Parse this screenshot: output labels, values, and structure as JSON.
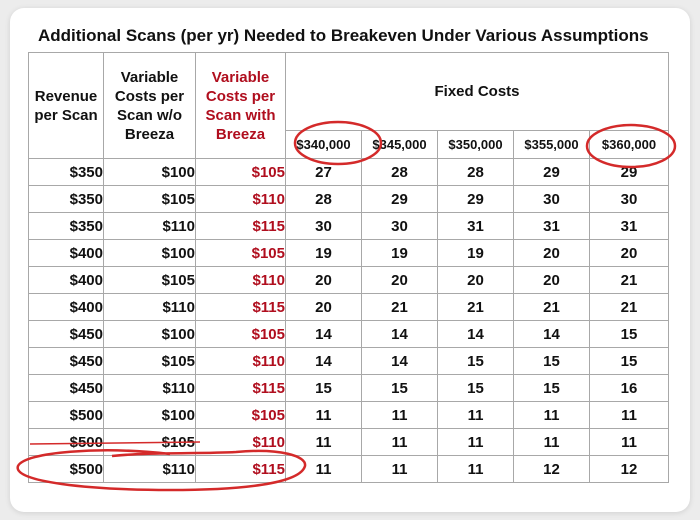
{
  "title": "Additional Scans (per yr) Needed to Breakeven Under Various Assumptions",
  "headers": {
    "revenue": [
      "Revenue",
      "per Scan"
    ],
    "variable_without": [
      "Variable",
      "Costs per",
      "Scan w/o",
      "Breeza"
    ],
    "variable_with": [
      "Variable",
      "Costs per",
      "Scan with",
      "Breeza"
    ],
    "fixed_costs": "Fixed Costs",
    "fixed_cost_columns": [
      "$340,000",
      "$345,000",
      "$350,000",
      "$355,000",
      "$360,000"
    ]
  },
  "rows": [
    {
      "revenue": "$350",
      "var_without": "$100",
      "var_with": "$105",
      "values": [
        "27",
        "28",
        "28",
        "29",
        "29"
      ]
    },
    {
      "revenue": "$350",
      "var_without": "$105",
      "var_with": "$110",
      "values": [
        "28",
        "29",
        "29",
        "30",
        "30"
      ]
    },
    {
      "revenue": "$350",
      "var_without": "$110",
      "var_with": "$115",
      "values": [
        "30",
        "30",
        "31",
        "31",
        "31"
      ]
    },
    {
      "revenue": "$400",
      "var_without": "$100",
      "var_with": "$105",
      "values": [
        "19",
        "19",
        "19",
        "20",
        "20"
      ]
    },
    {
      "revenue": "$400",
      "var_without": "$105",
      "var_with": "$110",
      "values": [
        "20",
        "20",
        "20",
        "20",
        "21"
      ]
    },
    {
      "revenue": "$400",
      "var_without": "$110",
      "var_with": "$115",
      "values": [
        "20",
        "21",
        "21",
        "21",
        "21"
      ]
    },
    {
      "revenue": "$450",
      "var_without": "$100",
      "var_with": "$105",
      "values": [
        "14",
        "14",
        "14",
        "14",
        "15"
      ]
    },
    {
      "revenue": "$450",
      "var_without": "$105",
      "var_with": "$110",
      "values": [
        "14",
        "14",
        "15",
        "15",
        "15"
      ]
    },
    {
      "revenue": "$450",
      "var_without": "$110",
      "var_with": "$115",
      "values": [
        "15",
        "15",
        "15",
        "15",
        "16"
      ]
    },
    {
      "revenue": "$500",
      "var_without": "$100",
      "var_with": "$105",
      "values": [
        "11",
        "11",
        "11",
        "11",
        "11"
      ]
    },
    {
      "revenue": "$500",
      "var_without": "$105",
      "var_with": "$110",
      "values": [
        "11",
        "11",
        "11",
        "11",
        "11"
      ]
    },
    {
      "revenue": "$500",
      "var_without": "$110",
      "var_with": "$115",
      "values": [
        "11",
        "11",
        "11",
        "12",
        "12"
      ]
    }
  ],
  "colors": {
    "text": "#111111",
    "accent_red": "#b00e1e",
    "annotation_red": "#d42a2a",
    "grid": "#a8a8a8"
  }
}
